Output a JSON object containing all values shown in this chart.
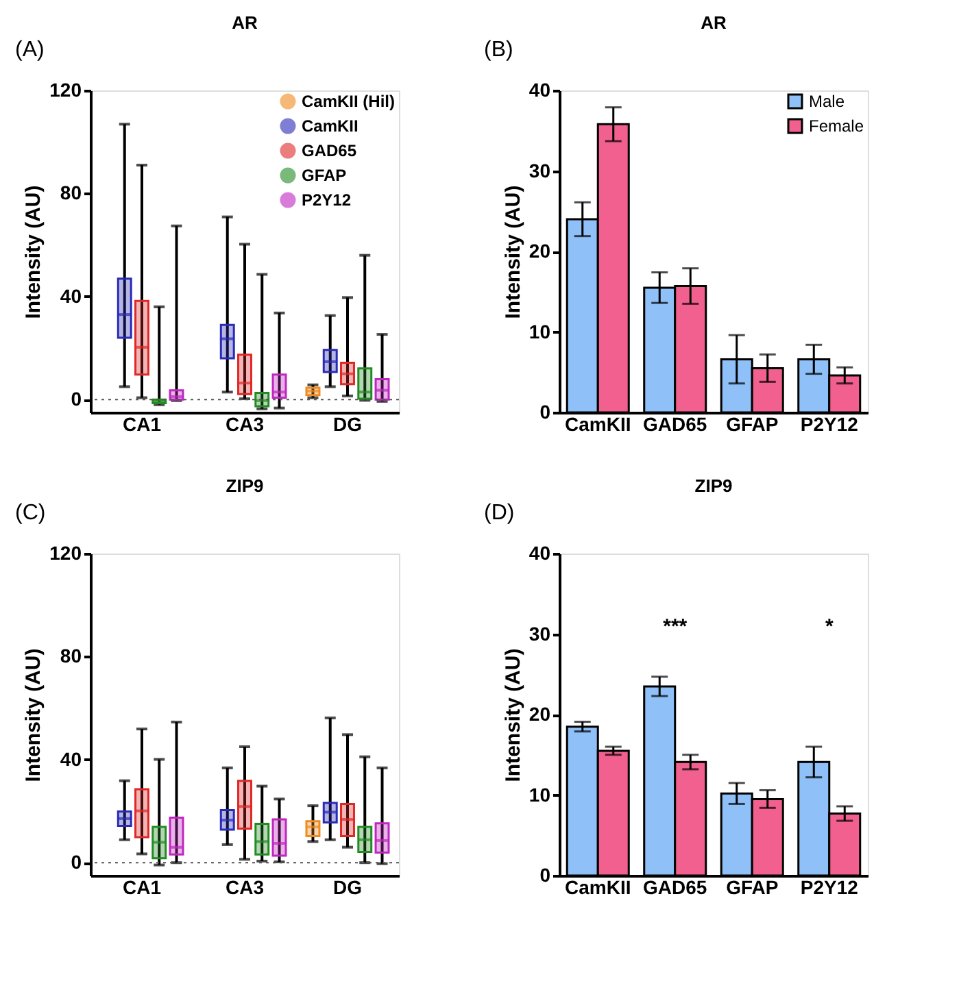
{
  "chart_data": [
    {
      "type": "box",
      "title": "AR",
      "ylabel": "Intensity (AU)",
      "annotations": [
        "(A)"
      ],
      "categories": [
        "CA1",
        "CA3",
        "DG"
      ],
      "ylim": [
        -5,
        120
      ],
      "yticks": [
        0,
        40,
        80,
        120
      ],
      "grid": false,
      "legend": "top right",
      "ref_lines": [
        {
          "axis": "y",
          "value": 0,
          "line_style": "dotted"
        }
      ],
      "series": [
        {
          "name": "CamKII (Hil)",
          "color": "#f08a1c",
          "boxes": [
            null,
            null,
            {
              "low": 0.7,
              "q1": 1.7,
              "median": 3.3,
              "q3": 4.6,
              "high": 5.7
            }
          ]
        },
        {
          "name": "CamKII",
          "color": "#2a2ab8",
          "boxes": [
            {
              "low": 5,
              "q1": 24,
              "median": 33,
              "q3": 46.9,
              "high": 106.9
            },
            {
              "low": 2.9,
              "q1": 16,
              "median": 23.6,
              "q3": 29,
              "high": 70.9
            },
            {
              "low": 5,
              "q1": 10.7,
              "median": 14.7,
              "q3": 19.3,
              "high": 32.6
            }
          ]
        },
        {
          "name": "GAD65",
          "color": "#e02828",
          "boxes": [
            {
              "low": 0.7,
              "q1": 9.7,
              "median": 20.3,
              "q3": 38.3,
              "high": 91
            },
            {
              "low": 0.3,
              "q1": 2.1,
              "median": 6.4,
              "q3": 17.4,
              "high": 60.3
            },
            {
              "low": 1.4,
              "q1": 6,
              "median": 10,
              "q3": 14.3,
              "high": 39.6
            }
          ]
        },
        {
          "name": "GFAP",
          "color": "#228b22",
          "boxes": [
            {
              "low": -2,
              "q1": -1.4,
              "median": -0.7,
              "q3": 0,
              "high": 36
            },
            {
              "low": -3.6,
              "q1": -2.6,
              "median": -0.4,
              "q3": 2.6,
              "high": 48.6
            },
            {
              "low": -0.3,
              "q1": 0.3,
              "median": 2.9,
              "q3": 12.1,
              "high": 56
            }
          ]
        },
        {
          "name": "P2Y12",
          "color": "#c026c0",
          "boxes": [
            {
              "low": -0.4,
              "q1": 0,
              "median": 1.1,
              "q3": 3.6,
              "high": 67.4
            },
            {
              "low": -3.3,
              "q1": 0.7,
              "median": 2.9,
              "q3": 9.7,
              "high": 33.6
            },
            {
              "low": -0.7,
              "q1": 0,
              "median": 3.6,
              "q3": 7.9,
              "high": 25.3
            }
          ]
        }
      ]
    },
    {
      "type": "bar",
      "title": "AR",
      "ylabel": "Intensity (AU)",
      "annotations": [
        "(B)"
      ],
      "categories": [
        "CamKII",
        "GAD65",
        "GFAP",
        "P2Y12"
      ],
      "ylim": [
        0,
        40
      ],
      "yticks": [
        0,
        10,
        20,
        30,
        40
      ],
      "grid": false,
      "legend": "top right",
      "series": [
        {
          "name": "Male",
          "color": "#8fc0f7",
          "values": [
            24.0,
            15.5,
            6.6,
            6.6
          ],
          "errors": [
            2.1,
            1.9,
            3.0,
            1.8
          ]
        },
        {
          "name": "Female",
          "color": "#f2608f",
          "values": [
            35.8,
            15.7,
            5.5,
            4.6
          ],
          "errors": [
            2.1,
            2.2,
            1.7,
            1.0
          ]
        }
      ]
    },
    {
      "type": "box",
      "title": "ZIP9",
      "ylabel": "Intensity (AU)",
      "annotations": [
        "(C)"
      ],
      "categories": [
        "CA1",
        "CA3",
        "DG"
      ],
      "ylim": [
        -5,
        120
      ],
      "yticks": [
        0,
        40,
        80,
        120
      ],
      "grid": false,
      "ref_lines": [
        {
          "axis": "y",
          "value": 0,
          "line_style": "dotted"
        }
      ],
      "series": [
        {
          "color": "#f08a1c",
          "boxes": [
            null,
            null,
            {
              "low": 8.2,
              "q1": 10.3,
              "median": 13.9,
              "q3": 16.1,
              "high": 22.1
            }
          ]
        },
        {
          "color": "#2a2ab8",
          "boxes": [
            {
              "low": 8.9,
              "q1": 14.3,
              "median": 17.1,
              "q3": 19.9,
              "high": 31.8
            },
            {
              "low": 7,
              "q1": 12.8,
              "median": 16.5,
              "q3": 20.4,
              "high": 36.8
            },
            {
              "low": 8.9,
              "q1": 15.6,
              "median": 19.6,
              "q3": 23.2,
              "high": 56.2
            }
          ]
        },
        {
          "color": "#e02828",
          "boxes": [
            {
              "low": 3.4,
              "q1": 9.9,
              "median": 20.1,
              "q3": 28.5,
              "high": 51.9
            },
            {
              "low": 1.3,
              "q1": 13.2,
              "median": 21.8,
              "q3": 31.8,
              "high": 45
            },
            {
              "low": 6,
              "q1": 10.3,
              "median": 16.8,
              "q3": 22.8,
              "high": 49.7
            }
          ]
        },
        {
          "color": "#228b22",
          "boxes": [
            {
              "low": -0.9,
              "q1": 1.7,
              "median": 7.9,
              "q3": 13.9,
              "high": 40.1
            },
            {
              "low": 0.6,
              "q1": 3.2,
              "median": 8.2,
              "q3": 15.1,
              "high": 29.7
            },
            {
              "low": 0,
              "q1": 4.2,
              "median": 8.9,
              "q3": 13.9,
              "high": 41.1
            }
          ]
        },
        {
          "color": "#c026c0",
          "boxes": [
            {
              "low": 0,
              "q1": 3.2,
              "median": 6,
              "q3": 17.5,
              "high": 54.6
            },
            {
              "low": 0.3,
              "q1": 2.7,
              "median": 7.5,
              "q3": 16.8,
              "high": 24.7
            },
            {
              "low": -0.4,
              "q1": 3.9,
              "median": 8.6,
              "q3": 15.3,
              "high": 36.8
            }
          ]
        }
      ]
    },
    {
      "type": "bar",
      "title": "ZIP9",
      "ylabel": "Intensity (AU)",
      "annotations": [
        "(D)",
        "***",
        "*"
      ],
      "categories": [
        "CamKII",
        "GAD65",
        "GFAP",
        "P2Y12"
      ],
      "ylim": [
        0,
        40
      ],
      "yticks": [
        0,
        10,
        20,
        30,
        40
      ],
      "grid": false,
      "series": [
        {
          "color": "#8fc0f7",
          "values": [
            18.5,
            23.5,
            10.2,
            14.1
          ],
          "errors": [
            0.6,
            1.2,
            1.3,
            1.9
          ]
        },
        {
          "color": "#f2608f",
          "values": [
            15.5,
            14.1,
            9.5,
            7.7
          ],
          "errors": [
            0.5,
            0.9,
            1.1,
            0.9
          ]
        }
      ]
    }
  ]
}
